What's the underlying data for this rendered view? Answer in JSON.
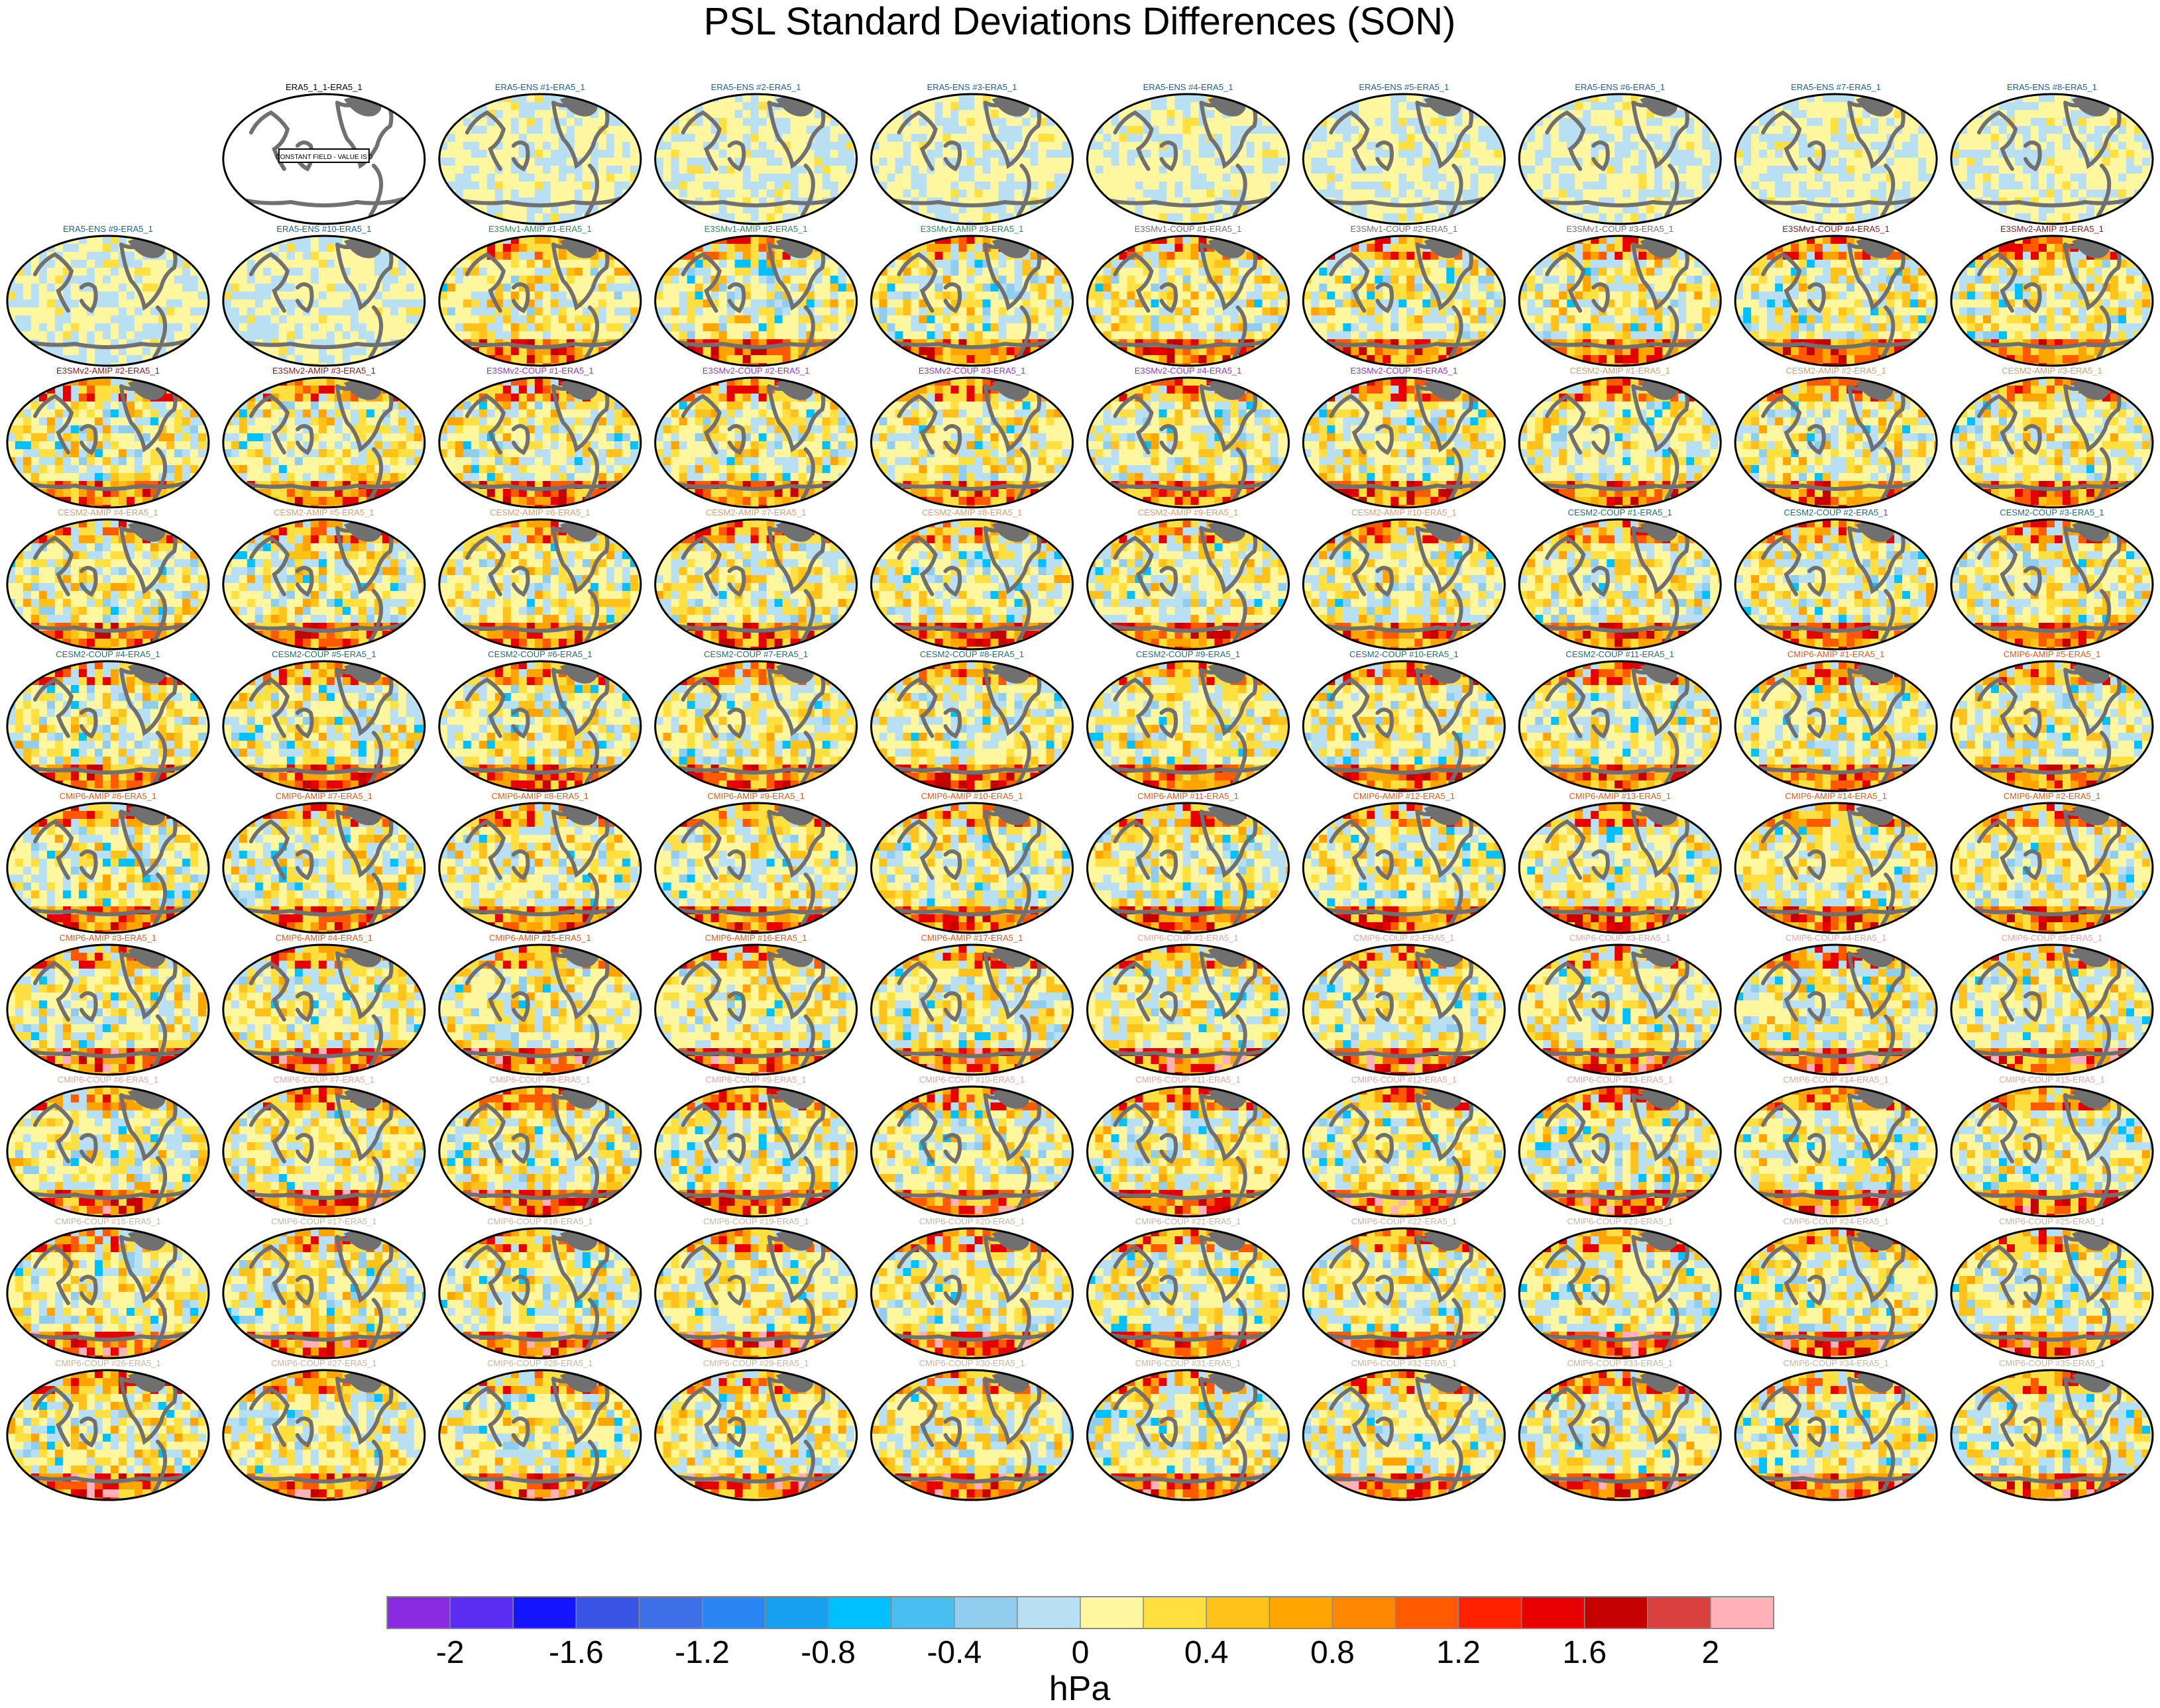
{
  "title": "PSL Standard Deviations Differences (SON)",
  "colorbar": {
    "unit": "hPa",
    "tick_labels": [
      "-2",
      "-1.6",
      "-1.2",
      "-0.8",
      "-0.4",
      "0",
      "0.4",
      "0.8",
      "1.2",
      "1.6",
      "2"
    ],
    "colors": [
      "#8a2be2",
      "#5a2df0",
      "#1414ff",
      "#3a55e6",
      "#3c6fe8",
      "#2a86f2",
      "#18a0f0",
      "#00c0ff",
      "#48bff0",
      "#90cdee",
      "#b9e0f2",
      "#fff7a0",
      "#ffe040",
      "#ffc21a",
      "#ffa400",
      "#ff8800",
      "#ff5a00",
      "#ff2000",
      "#e60000",
      "#c40000",
      "#d94040",
      "#ffb0b8"
    ]
  },
  "chart_data": {
    "type": "heatmap",
    "title": "PSL Standard Deviations Differences (SON)",
    "grid": {
      "rows": 10,
      "columns": 10
    },
    "colorbar_range": [
      -2.2,
      2.2
    ],
    "colorbar_unit": "hPa",
    "panels": [
      {
        "label": "",
        "tint": "#ffffff",
        "note": ""
      },
      {
        "label": "ERA5_1_1-ERA5_1",
        "tint": "#000000",
        "note": "CONSTANT FIELD - VALUE IS 0"
      },
      {
        "label": "ERA5-ENS   #1-ERA5_1",
        "tint": "#1a5fa8"
      },
      {
        "label": "ERA5-ENS   #2-ERA5_1",
        "tint": "#1a5fa8"
      },
      {
        "label": "ERA5-ENS   #3-ERA5_1",
        "tint": "#1a5fa8"
      },
      {
        "label": "ERA5-ENS   #4-ERA5_1",
        "tint": "#1a5fa8"
      },
      {
        "label": "ERA5-ENS   #5-ERA5_1",
        "tint": "#1a5fa8"
      },
      {
        "label": "ERA5-ENS   #6-ERA5_1",
        "tint": "#1a5fa8"
      },
      {
        "label": "ERA5-ENS   #7-ERA5_1",
        "tint": "#1a5fa8"
      },
      {
        "label": "ERA5-ENS   #8-ERA5_1",
        "tint": "#1a5fa8"
      },
      {
        "label": "ERA5-ENS   #9-ERA5_1",
        "tint": "#1a5fa8"
      },
      {
        "label": "ERA5-ENS   #10-ERA5_1",
        "tint": "#1a5fa8"
      },
      {
        "label": "E3SMv1-AMIP #1-ERA5_1",
        "tint": "#2e8b57"
      },
      {
        "label": "E3SMv1-AMIP #2-ERA5_1",
        "tint": "#2e8b57"
      },
      {
        "label": "E3SMv1-AMIP #3-ERA5_1",
        "tint": "#2e8b57"
      },
      {
        "label": "E3SMv1-COUP #1-ERA5_1",
        "tint": "#707070"
      },
      {
        "label": "E3SMv1-COUP #2-ERA5_1",
        "tint": "#707070"
      },
      {
        "label": "E3SMv1-COUP #3-ERA5_1",
        "tint": "#707070"
      },
      {
        "label": "E3SMv1-COUP #4-ERA5_1",
        "tint": "#8b1a1a"
      },
      {
        "label": "E3SMv2-AMIP #1-ERA5_1",
        "tint": "#8b1a1a"
      },
      {
        "label": "E3SMv2-AMIP #2-ERA5_1",
        "tint": "#8b1a1a"
      },
      {
        "label": "E3SMv2-AMIP #3-ERA5_1",
        "tint": "#8b1a1a"
      },
      {
        "label": "E3SMv2-COUP #1-ERA5_1",
        "tint": "#9a32cd"
      },
      {
        "label": "E3SMv2-COUP #2-ERA5_1",
        "tint": "#9a32cd"
      },
      {
        "label": "E3SMv2-COUP #3-ERA5_1",
        "tint": "#9a32cd"
      },
      {
        "label": "E3SMv2-COUP #4-ERA5_1",
        "tint": "#9a32cd"
      },
      {
        "label": "E3SMv2-COUP #5-ERA5_1",
        "tint": "#9a32cd"
      },
      {
        "label": "CESM2-AMIP  #1-ERA5_1",
        "tint": "#d2a070"
      },
      {
        "label": "CESM2-AMIP  #2-ERA5_1",
        "tint": "#d2a070"
      },
      {
        "label": "CESM2-AMIP  #3-ERA5_1",
        "tint": "#d2a070"
      },
      {
        "label": "CESM2-AMIP  #4-ERA5_1",
        "tint": "#d2a070"
      },
      {
        "label": "CESM2-AMIP  #5-ERA5_1",
        "tint": "#d2a070"
      },
      {
        "label": "CESM2-AMIP  #6-ERA5_1",
        "tint": "#d2a070"
      },
      {
        "label": "CESM2-AMIP  #7-ERA5_1",
        "tint": "#d2a070"
      },
      {
        "label": "CESM2-AMIP  #8-ERA5_1",
        "tint": "#d2a070"
      },
      {
        "label": "CESM2-AMIP  #9-ERA5_1",
        "tint": "#d2a070"
      },
      {
        "label": "CESM2-AMIP  #10-ERA5_1",
        "tint": "#d2a070"
      },
      {
        "label": "CESM2-COUP  #1-ERA5_1",
        "tint": "#1f6f6f"
      },
      {
        "label": "CESM2-COUP  #2-ERA5_1",
        "tint": "#1f6f6f"
      },
      {
        "label": "CESM2-COUP  #3-ERA5_1",
        "tint": "#1f6f6f"
      },
      {
        "label": "CESM2-COUP  #4-ERA5_1",
        "tint": "#1f6f6f"
      },
      {
        "label": "CESM2-COUP  #5-ERA5_1",
        "tint": "#1f6f6f"
      },
      {
        "label": "CESM2-COUP  #6-ERA5_1",
        "tint": "#1f6f6f"
      },
      {
        "label": "CESM2-COUP  #7-ERA5_1",
        "tint": "#1f6f6f"
      },
      {
        "label": "CESM2-COUP  #8-ERA5_1",
        "tint": "#1f6f6f"
      },
      {
        "label": "CESM2-COUP  #9-ERA5_1",
        "tint": "#1f6f6f"
      },
      {
        "label": "CESM2-COUP  #10-ERA5_1",
        "tint": "#1f6f6f"
      },
      {
        "label": "CESM2-COUP  #11-ERA5_1",
        "tint": "#1f6f6f"
      },
      {
        "label": "CMIP6-AMIP  #1-ERA5_1",
        "tint": "#e05a1a"
      },
      {
        "label": "CMIP6-AMIP  #5-ERA5_1",
        "tint": "#e05a1a"
      },
      {
        "label": "CMIP6-AMIP  #6-ERA5_1",
        "tint": "#e05a1a"
      },
      {
        "label": "CMIP6-AMIP  #7-ERA5_1",
        "tint": "#e05a1a"
      },
      {
        "label": "CMIP6-AMIP  #8-ERA5_1",
        "tint": "#e05a1a"
      },
      {
        "label": "CMIP6-AMIP  #9-ERA5_1",
        "tint": "#e05a1a"
      },
      {
        "label": "CMIP6-AMIP  #10-ERA5_1",
        "tint": "#e05a1a"
      },
      {
        "label": "CMIP6-AMIP  #11-ERA5_1",
        "tint": "#e05a1a"
      },
      {
        "label": "CMIP6-AMIP  #12-ERA5_1",
        "tint": "#e05a1a"
      },
      {
        "label": "CMIP6-AMIP  #13-ERA5_1",
        "tint": "#e05a1a"
      },
      {
        "label": "CMIP6-AMIP  #14-ERA5_1",
        "tint": "#e05a1a"
      },
      {
        "label": "CMIP6-AMIP  #2-ERA5_1",
        "tint": "#e05a1a"
      },
      {
        "label": "CMIP6-AMIP  #3-ERA5_1",
        "tint": "#e05a1a"
      },
      {
        "label": "CMIP6-AMIP  #4-ERA5_1",
        "tint": "#e05a1a"
      },
      {
        "label": "CMIP6-AMIP  #15-ERA5_1",
        "tint": "#e05a1a"
      },
      {
        "label": "CMIP6-AMIP  #16-ERA5_1",
        "tint": "#e05a1a"
      },
      {
        "label": "CMIP6-AMIP  #17-ERA5_1",
        "tint": "#e05a1a"
      },
      {
        "label": "CMIP6-COUP  #1-ERA5_1",
        "tint": "#e0a8a0"
      },
      {
        "label": "CMIP6-COUP  #2-ERA5_1",
        "tint": "#e0a8a0"
      },
      {
        "label": "CMIP6-COUP  #3-ERA5_1",
        "tint": "#e0a8a0"
      },
      {
        "label": "CMIP6-COUP  #4-ERA5_1",
        "tint": "#e0a8a0"
      },
      {
        "label": "CMIP6-COUP  #5-ERA5_1",
        "tint": "#e0a8a0"
      },
      {
        "label": "CMIP6-COUP  #6-ERA5_1",
        "tint": "#e0a8a0"
      },
      {
        "label": "CMIP6-COUP  #7-ERA5_1",
        "tint": "#e0a8a0"
      },
      {
        "label": "CMIP6-COUP  #8-ERA5_1",
        "tint": "#e0a8a0"
      },
      {
        "label": "CMIP6-COUP  #9-ERA5_1",
        "tint": "#e0a8a0"
      },
      {
        "label": "CMIP6-COUP  #10-ERA5_1",
        "tint": "#e0a8a0"
      },
      {
        "label": "CMIP6-COUP  #11-ERA5_1",
        "tint": "#e0a8a0"
      },
      {
        "label": "CMIP6-COUP  #12-ERA5_1",
        "tint": "#e0a8a0"
      },
      {
        "label": "CMIP6-COUP  #13-ERA5_1",
        "tint": "#e0a8a0"
      },
      {
        "label": "CMIP6-COUP  #14-ERA5_1",
        "tint": "#e0a8a0"
      },
      {
        "label": "CMIP6-COUP  #15-ERA5_1",
        "tint": "#e0a8a0"
      },
      {
        "label": "CMIP6-COUP  #16-ERA5_1",
        "tint": "#c8b4a0"
      },
      {
        "label": "CMIP6-COUP  #17-ERA5_1",
        "tint": "#c8b4a0"
      },
      {
        "label": "CMIP6-COUP  #18-ERA5_1",
        "tint": "#c8b4a0"
      },
      {
        "label": "CMIP6-COUP  #19-ERA5_1",
        "tint": "#c8b4a0"
      },
      {
        "label": "CMIP6-COUP  #20-ERA5_1",
        "tint": "#c8b4a0"
      },
      {
        "label": "CMIP6-COUP  #21-ERA5_1",
        "tint": "#c8b4a0"
      },
      {
        "label": "CMIP6-COUP  #22-ERA5_1",
        "tint": "#c8b4a0"
      },
      {
        "label": "CMIP6-COUP  #23-ERA5_1",
        "tint": "#c8b4a0"
      },
      {
        "label": "CMIP6-COUP  #24-ERA5_1",
        "tint": "#c8b4a0"
      },
      {
        "label": "CMIP6-COUP  #25-ERA5_1",
        "tint": "#c8b4a0"
      },
      {
        "label": "CMIP6-COUP  #26-ERA5_1",
        "tint": "#c8b4a0"
      },
      {
        "label": "CMIP6-COUP  #27-ERA5_1",
        "tint": "#c8b4a0"
      },
      {
        "label": "CMIP6-COUP  #28-ERA5_1",
        "tint": "#c8b4a0"
      },
      {
        "label": "CMIP6-COUP  #29-ERA5_1",
        "tint": "#c8b4a0"
      },
      {
        "label": "CMIP6-COUP  #30-ERA5_1",
        "tint": "#c8b4a0"
      },
      {
        "label": "CMIP6-COUP  #31-ERA5_1",
        "tint": "#c8b4a0"
      },
      {
        "label": "CMIP6-COUP  #32-ERA5_1",
        "tint": "#c8b4a0"
      },
      {
        "label": "CMIP6-COUP  #33-ERA5_1",
        "tint": "#c8b4a0"
      },
      {
        "label": "CMIP6-COUP  #34-ERA5_1",
        "tint": "#c8b4a0"
      },
      {
        "label": "CMIP6-COUP  #35-ERA5_1",
        "tint": "#c8b4a0"
      }
    ]
  }
}
